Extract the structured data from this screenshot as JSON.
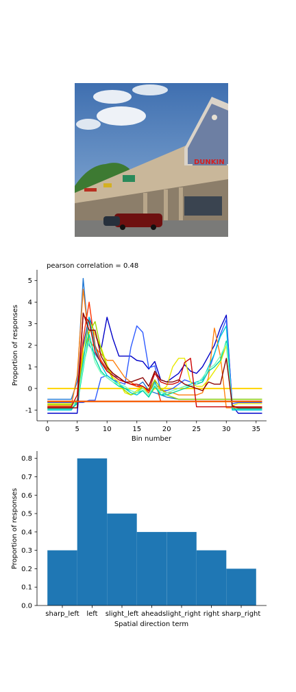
{
  "photo": {
    "description_name": "storefront-photo",
    "sign_text": "DUNKIN"
  },
  "chart_data": [
    {
      "type": "line",
      "title": "pearson correlation = 0.48",
      "xlabel": "Bin number",
      "ylabel": "Proportion of responses",
      "xlim": [
        -1.75,
        36.75
      ],
      "ylim": [
        -1.5,
        5.5
      ],
      "xticks": [
        0,
        5,
        10,
        15,
        20,
        25,
        30,
        35
      ],
      "yticks": [
        -1,
        0,
        1,
        2,
        3,
        4,
        5
      ],
      "grid": false,
      "series": [
        {
          "name": "s1",
          "color": "#ffd400",
          "flat": true,
          "y": [
            0,
            0,
            0,
            0,
            0,
            0,
            0,
            0,
            0,
            0,
            0,
            0,
            0,
            0,
            0,
            0,
            0,
            0,
            0,
            0,
            0,
            0,
            0,
            0,
            0,
            0,
            0,
            0,
            0,
            0,
            0,
            0,
            0,
            0,
            0,
            0,
            0
          ]
        },
        {
          "name": "s2",
          "color": "#1f77d4",
          "y": [
            -0.5,
            -0.5,
            -0.5,
            -0.5,
            -0.5,
            0.3,
            5.1,
            2.0,
            1.6,
            1.2,
            0.9,
            0.6,
            0.5,
            0.3,
            0.2,
            0.1,
            0.3,
            -0.1,
            -0.2,
            -0.3,
            -0.4,
            -0.45,
            -0.5,
            -0.5,
            -0.5,
            -0.5,
            -0.5,
            -0.5,
            -0.5,
            -0.5,
            -0.5,
            -0.5,
            -0.5,
            -0.5,
            -0.5,
            -0.5,
            -0.5
          ]
        },
        {
          "name": "s3",
          "color": "#0000c8",
          "y": [
            -1.15,
            -1.15,
            -1.15,
            -1.15,
            -1.15,
            -1.15,
            2.0,
            3.3,
            2.5,
            1.8,
            3.3,
            2.3,
            1.5,
            1.5,
            1.5,
            1.3,
            1.25,
            0.9,
            1.25,
            0.4,
            0.3,
            0.5,
            0.7,
            1.1,
            0.8,
            0.7,
            1.0,
            1.5,
            2.0,
            2.8,
            3.4,
            -0.8,
            -1.15,
            -1.15,
            -1.15,
            -1.15,
            -1.15
          ]
        },
        {
          "name": "s4",
          "color": "#2e5bff",
          "y": [
            -0.65,
            -0.65,
            -0.65,
            -0.65,
            -0.65,
            -0.65,
            -0.65,
            -0.55,
            -0.55,
            0.5,
            0.6,
            0.4,
            0.3,
            0.2,
            1.9,
            2.9,
            2.6,
            0.95,
            1.05,
            -0.1,
            -0.1,
            0.0,
            0.2,
            0.4,
            0.3,
            0.2,
            0.3,
            0.8,
            1.6,
            2.5,
            3.2,
            -0.7,
            -0.65,
            -0.65,
            -0.65,
            -0.65,
            -0.65
          ]
        },
        {
          "name": "s5",
          "color": "#ff7f0e",
          "y": [
            -0.8,
            -0.8,
            -0.8,
            -0.8,
            -0.8,
            0.6,
            4.6,
            2.2,
            1.9,
            1.6,
            1.3,
            1.3,
            0.9,
            0.5,
            0.3,
            0.1,
            0.0,
            -0.1,
            0.2,
            0.0,
            -0.2,
            -0.2,
            -0.3,
            -0.3,
            -0.3,
            -0.3,
            -0.2,
            0.5,
            2.8,
            1.5,
            -0.9,
            -0.9,
            -0.9,
            -0.9,
            -0.9,
            -0.9,
            -0.9
          ]
        },
        {
          "name": "s6",
          "color": "#ff3300",
          "y": [
            -0.9,
            -0.9,
            -0.9,
            -0.9,
            -0.9,
            -0.7,
            2.3,
            4.0,
            2.0,
            1.3,
            0.9,
            0.7,
            0.5,
            0.3,
            0.2,
            0.1,
            0.1,
            -0.2,
            0.4,
            -0.6,
            -0.6,
            -0.6,
            -0.6,
            -0.6,
            -0.6,
            -0.6,
            -0.6,
            -0.6,
            -0.6,
            -0.6,
            -0.6,
            -0.6,
            -0.6,
            -0.6,
            -0.6,
            -0.6,
            -0.6
          ]
        },
        {
          "name": "s7",
          "color": "#e8e800",
          "y": [
            -0.7,
            -0.7,
            -0.7,
            -0.7,
            -0.7,
            -0.7,
            1.8,
            3.2,
            2.5,
            1.9,
            1.1,
            0.5,
            0.3,
            -0.2,
            -0.3,
            -0.1,
            0.1,
            -0.3,
            0.0,
            -0.1,
            0.1,
            1.0,
            1.4,
            1.4,
            0.3,
            0.1,
            0.1,
            0.4,
            0.8,
            1.2,
            2.0,
            -0.8,
            -0.7,
            -0.7,
            -0.7,
            -0.7,
            -0.7
          ]
        },
        {
          "name": "s8",
          "color": "#9ad900",
          "y": [
            -0.75,
            -0.75,
            -0.75,
            -0.75,
            -0.75,
            -0.6,
            1.5,
            2.6,
            3.1,
            1.8,
            1.0,
            0.4,
            0.2,
            -0.1,
            -0.3,
            -0.2,
            0.1,
            -0.1,
            0.4,
            0.0,
            -0.3,
            -0.4,
            -0.5,
            -0.5,
            -0.5,
            -0.5,
            -0.5,
            -0.5,
            -0.5,
            -0.5,
            -0.5,
            -0.5,
            -0.5,
            -0.5,
            -0.5,
            -0.5,
            -0.5
          ]
        },
        {
          "name": "s9",
          "color": "#00c8d8",
          "y": [
            -1.0,
            -1.0,
            -1.0,
            -1.0,
            -1.0,
            -0.6,
            1.2,
            3.3,
            1.9,
            1.1,
            0.6,
            0.4,
            0.2,
            0.0,
            -0.2,
            -0.3,
            -0.1,
            -0.4,
            0.3,
            -0.3,
            -0.2,
            -0.1,
            0.0,
            0.1,
            0.2,
            0.3,
            0.4,
            1.0,
            1.6,
            2.4,
            2.9,
            -1.0,
            -1.0,
            -1.0,
            -1.0,
            -1.0,
            -1.0
          ]
        },
        {
          "name": "s10",
          "color": "#00d8a0",
          "y": [
            -0.95,
            -0.95,
            -0.95,
            -0.95,
            -0.95,
            -0.7,
            0.9,
            2.5,
            1.4,
            0.8,
            0.5,
            0.3,
            0.1,
            0.0,
            -0.1,
            -0.2,
            -0.1,
            -0.4,
            0.1,
            -0.3,
            -0.3,
            -0.2,
            -0.1,
            0.0,
            0.1,
            0.2,
            0.3,
            0.8,
            1.0,
            1.3,
            2.2,
            -0.95,
            -0.95,
            -0.95,
            -0.95,
            -0.95,
            -0.95
          ]
        },
        {
          "name": "s11",
          "color": "#7fffbf",
          "y": [
            -0.85,
            -0.85,
            -0.85,
            -0.85,
            -0.85,
            -0.5,
            1.0,
            2.2,
            1.2,
            0.7,
            0.5,
            0.3,
            0.2,
            0.1,
            -0.1,
            -0.2,
            0.0,
            -0.3,
            0.2,
            -0.2,
            -0.2,
            -0.1,
            0.0,
            0.1,
            0.1,
            0.2,
            0.5,
            0.9,
            1.1,
            1.5,
            2.1,
            -0.85,
            -0.85,
            -0.85,
            -0.85,
            -0.85,
            -0.85
          ]
        },
        {
          "name": "s12",
          "color": "#cc0000",
          "y": [
            -0.85,
            -0.85,
            -0.85,
            -0.85,
            -0.85,
            -0.3,
            3.4,
            3.1,
            1.7,
            1.2,
            0.8,
            0.6,
            0.4,
            0.3,
            0.2,
            0.2,
            0.1,
            -0.1,
            0.7,
            0.3,
            0.2,
            0.2,
            0.3,
            1.2,
            1.4,
            -0.85,
            -0.85,
            -0.85,
            -0.85,
            -0.85,
            -0.85,
            -0.85,
            -0.85,
            -0.85,
            -0.85,
            -0.85,
            -0.85
          ]
        },
        {
          "name": "s13",
          "color": "#8b0000",
          "y": [
            -0.9,
            -0.9,
            -0.9,
            -0.9,
            -0.9,
            -0.9,
            3.5,
            2.7,
            2.7,
            1.5,
            1.0,
            0.7,
            0.5,
            0.3,
            0.3,
            0.4,
            0.5,
            0.1,
            0.8,
            0.4,
            0.3,
            0.3,
            0.4,
            0.2,
            0.1,
            0.0,
            -0.1,
            0.3,
            0.2,
            0.2,
            1.4,
            -0.8,
            -0.9,
            -0.9,
            -0.9,
            -0.9,
            -0.9
          ]
        },
        {
          "name": "s14",
          "color": "#7f0000",
          "flat": true,
          "y": [
            -0.6,
            -0.6,
            -0.6,
            -0.6,
            -0.6,
            -0.6,
            -0.6,
            -0.6,
            -0.6,
            -0.6,
            -0.6,
            -0.6,
            -0.6,
            -0.6,
            -0.6,
            -0.6,
            -0.6,
            -0.6,
            -0.6,
            -0.6,
            -0.6,
            -0.6,
            -0.6,
            -0.6,
            -0.6,
            -0.6,
            -0.6,
            -0.6,
            -0.6,
            -0.6,
            -0.6,
            -0.6,
            -0.6,
            -0.6,
            -0.6,
            -0.6,
            -0.6
          ]
        },
        {
          "name": "s15",
          "color": "#ff6000",
          "flat": true,
          "y": [
            -0.6,
            -0.6,
            -0.6,
            -0.6,
            -0.6,
            -0.6,
            -0.6,
            -0.6,
            -0.6,
            -0.6,
            -0.6,
            -0.6,
            -0.6,
            -0.6,
            -0.6,
            -0.6,
            -0.6,
            -0.6,
            -0.6,
            -0.6,
            -0.6,
            -0.6,
            -0.6,
            -0.6,
            -0.6,
            -0.6,
            -0.6,
            -0.6,
            -0.6,
            -0.6,
            -0.6,
            -0.6,
            -0.6,
            -0.6,
            -0.6,
            -0.6,
            -0.6
          ]
        }
      ]
    },
    {
      "type": "bar",
      "xlabel": "Spatial direction term",
      "ylabel": "Proportion of responses",
      "categories": [
        "sharp_left",
        "left",
        "slight_left",
        "ahead",
        "slight_right",
        "right",
        "sharp_right"
      ],
      "values": [
        0.3,
        0.8,
        0.5,
        0.4,
        0.4,
        0.3,
        0.2
      ],
      "ylim": [
        0.0,
        0.84
      ],
      "yticks": [
        0.0,
        0.1,
        0.2,
        0.3,
        0.4,
        0.5,
        0.6,
        0.7,
        0.8
      ],
      "color": "#1f77b4",
      "grid": false
    }
  ]
}
